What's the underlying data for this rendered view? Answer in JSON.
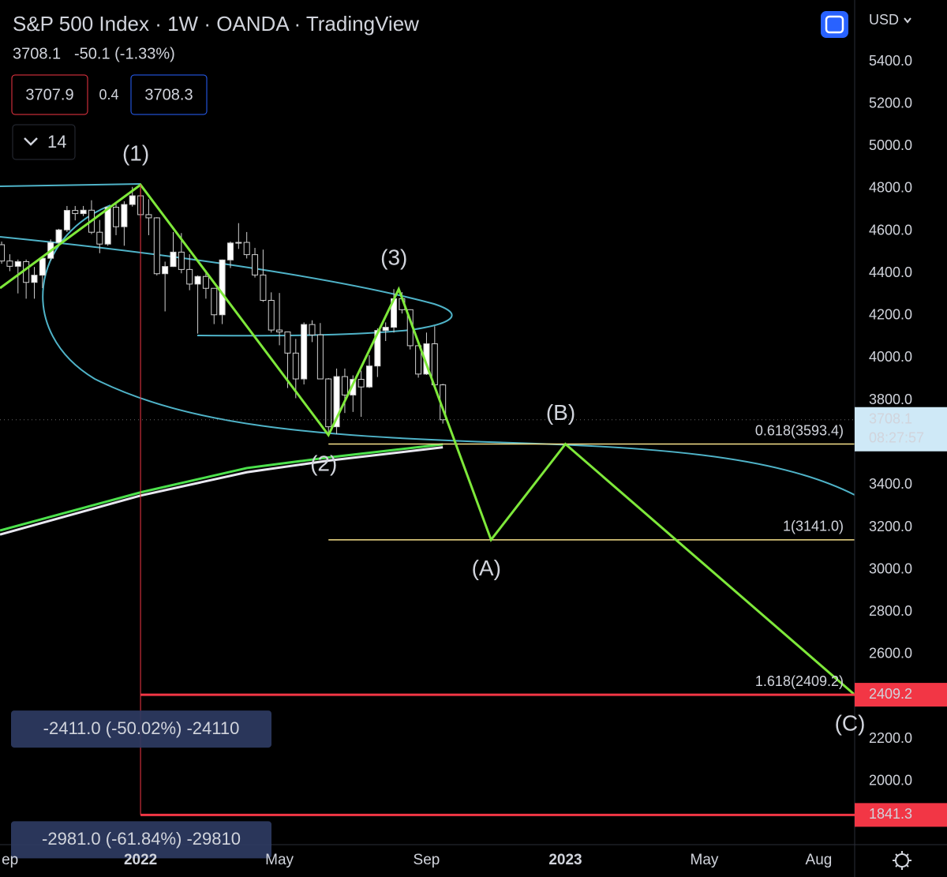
{
  "header": {
    "title": "S&P 500 Index · 1W · OANDA · TradingView",
    "last": "3708.1",
    "change": "-50.1 (-1.33%)",
    "bid": "3707.9",
    "spread": "0.4",
    "ask": "3708.3",
    "indicators": "14",
    "currency": "USD"
  },
  "chart_data": {
    "type": "candlestick",
    "categories": [
      null,
      null,
      null,
      null,
      null,
      null,
      null,
      null,
      null,
      null,
      null,
      null,
      null,
      null,
      null,
      null,
      null,
      null,
      null,
      null,
      null,
      null,
      null,
      null,
      null,
      null,
      null,
      null,
      null,
      null,
      null,
      null,
      null,
      null,
      null,
      null,
      null,
      null,
      null,
      null,
      null,
      null,
      null,
      null,
      null,
      null,
      null,
      null,
      null,
      null,
      null,
      null,
      null,
      null,
      null
    ],
    "open": [
      4535,
      4458,
      4433,
      4455,
      4357,
      4391,
      4471,
      4545,
      4605,
      4697,
      4682,
      4698,
      4594,
      4538,
      4712,
      4620,
      4725,
      4766,
      4677,
      4662,
      4398,
      4432,
      4500,
      4418,
      4349,
      4385,
      4329,
      4204,
      4463,
      4543,
      4546,
      4488,
      4392,
      4272,
      4132,
      4123,
      4023,
      3901,
      4158,
      4109,
      3901,
      3675,
      3912,
      3825,
      3899,
      3863,
      3962,
      4130,
      4145,
      4280,
      4228,
      4058,
      3924,
      4067,
      3873
    ],
    "high": [
      4550,
      4490,
      4465,
      4465,
      4430,
      4475,
      4560,
      4610,
      4718,
      4718,
      4718,
      4745,
      4652,
      4713,
      4730,
      4740,
      4808,
      4818,
      4750,
      4665,
      4455,
      4595,
      4590,
      4490,
      4390,
      4415,
      4330,
      4465,
      4550,
      4637,
      4595,
      4520,
      4512,
      4310,
      4307,
      4125,
      4090,
      4168,
      4178,
      4165,
      3905,
      3950,
      3950,
      3918,
      3940,
      4013,
      4140,
      4168,
      4325,
      4311,
      4230,
      4060,
      4120,
      4150,
      3878
    ],
    "low": [
      4445,
      4410,
      4305,
      4280,
      4280,
      4330,
      4460,
      4540,
      4595,
      4650,
      4670,
      4585,
      4495,
      4530,
      4580,
      4530,
      4715,
      4660,
      4580,
      4390,
      4220,
      4430,
      4400,
      4320,
      4115,
      4280,
      4160,
      4160,
      4425,
      4515,
      4470,
      4380,
      4265,
      4120,
      4060,
      3858,
      3810,
      3875,
      4075,
      3900,
      3636,
      3640,
      3740,
      3745,
      3722,
      3858,
      3910,
      4080,
      4120,
      4210,
      4040,
      3907,
      3920,
      3860,
      3690
    ],
    "close": [
      4458,
      4433,
      4455,
      4357,
      4391,
      4471,
      4545,
      4605,
      4697,
      4682,
      4698,
      4594,
      4538,
      4712,
      4620,
      4725,
      4766,
      4677,
      4662,
      4398,
      4432,
      4500,
      4418,
      4349,
      4385,
      4329,
      4204,
      4463,
      4543,
      4546,
      4488,
      4392,
      4272,
      4132,
      4123,
      4023,
      3901,
      4158,
      4109,
      3901,
      3675,
      3912,
      3825,
      3899,
      3863,
      3962,
      4130,
      4145,
      4280,
      4228,
      4058,
      3924,
      4067,
      3873,
      3708.1
    ],
    "up_color": "#ffffff",
    "down_color": "#000000",
    "xlim": [
      -0.2,
      104.4
    ],
    "xticks": [
      {
        "value": 0,
        "label": "ep"
      },
      {
        "value": 17,
        "label": "2022"
      },
      {
        "value": 34,
        "label": "May"
      },
      {
        "value": 52,
        "label": "Sep"
      },
      {
        "value": 69,
        "label": "2023"
      },
      {
        "value": 86,
        "label": "May"
      },
      {
        "value": 100,
        "label": "Aug"
      }
    ],
    "ylim": [
      1701,
      5691
    ],
    "yticks": [
      {
        "value": 5400,
        "label": "5400.0"
      },
      {
        "value": 5200,
        "label": "5200.0"
      },
      {
        "value": 5000,
        "label": "5000.0"
      },
      {
        "value": 4800,
        "label": "4800.0"
      },
      {
        "value": 4600,
        "label": "4600.0"
      },
      {
        "value": 4400,
        "label": "4400.0"
      },
      {
        "value": 4200,
        "label": "4200.0"
      },
      {
        "value": 4000,
        "label": "4000.0"
      },
      {
        "value": 3800,
        "label": "3800.0"
      },
      {
        "value": 3400,
        "label": "3400.0"
      },
      {
        "value": 3200,
        "label": "3200.0"
      },
      {
        "value": 3000,
        "label": "3000.0"
      },
      {
        "value": 2800,
        "label": "2800.0"
      },
      {
        "value": 2600,
        "label": "2600.0"
      },
      {
        "value": 2200,
        "label": "2200.0"
      },
      {
        "value": 2000,
        "label": "2000.0"
      }
    ],
    "wave": {
      "color": "#7ee83a",
      "x": [
        -0.2,
        17,
        40,
        48.6,
        59.9,
        69,
        104.4
      ],
      "values": [
        4330,
        4818,
        3636,
        4325,
        3141,
        3593.4,
        2409.2
      ],
      "labels": [
        "(1)",
        "(2)",
        "(3)",
        "(A)",
        "(B)",
        "(C)"
      ]
    },
    "moving_averages": [
      {
        "color": "#4ce14c",
        "x": [
          -0.2,
          17,
          30,
          40,
          54
        ],
        "values": [
          3185,
          3365,
          3480,
          3530,
          3592
        ]
      },
      {
        "color": "#e8e8f0",
        "x": [
          -0.2,
          17,
          30,
          40,
          54
        ],
        "values": [
          3166,
          3350,
          3460,
          3515,
          3578
        ]
      }
    ],
    "fib_levels": [
      {
        "label": "0.618(3593.4)",
        "value": 3593.4
      },
      {
        "label": "1(3141.0)",
        "value": 3141.0
      },
      {
        "label": "1.618(2409.2)",
        "value": 2409.2
      }
    ],
    "price_lines": [
      {
        "label": "2409.2",
        "value": 2409.2
      },
      {
        "label": "1841.3",
        "value": 1841.3
      }
    ],
    "measures": [
      "-2411.0 (-50.02%) -24110",
      "-2981.0 (-61.84%) -29810"
    ],
    "last_price": {
      "value": 3708.1,
      "label": "3708.1",
      "countdown": "08:27:57"
    }
  }
}
